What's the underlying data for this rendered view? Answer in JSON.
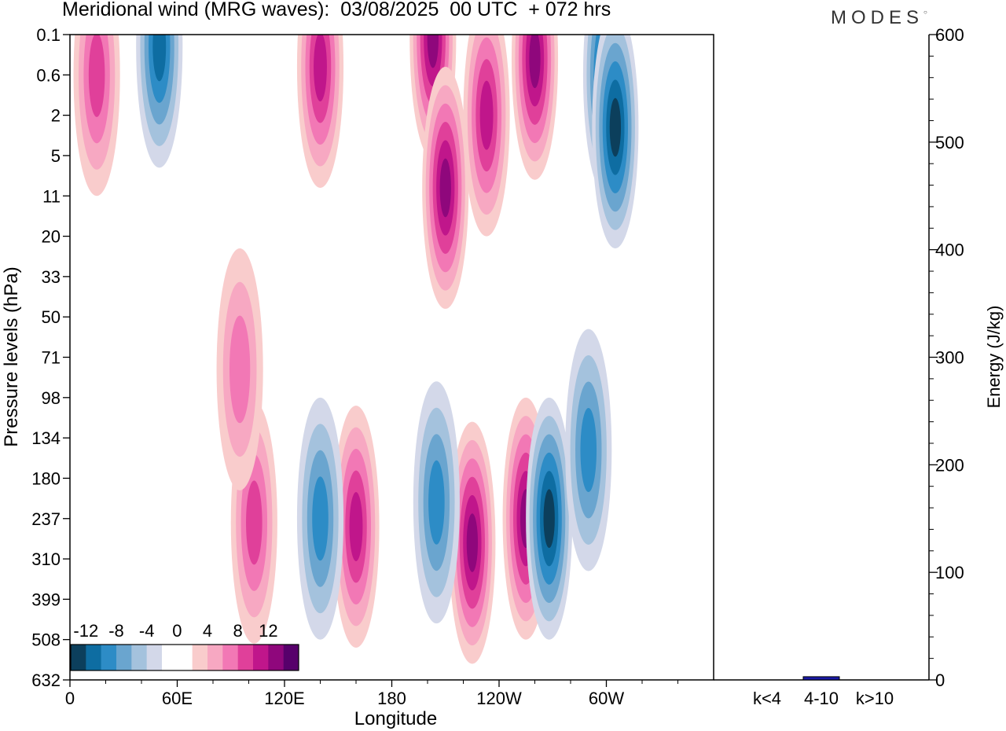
{
  "header": {
    "title": "Meridional wind (MRG waves):  03/08/2025  00 UTC  + 072 hrs",
    "logo": "MODES"
  },
  "chart_data": [
    {
      "type": "heatmap",
      "title": "Meridional wind (MRG waves)",
      "xlabel": "Longitude",
      "ylabel": "Pressure levels (hPa)",
      "x_ticks": [
        "0",
        "60E",
        "120E",
        "180",
        "120W",
        "60W"
      ],
      "x_range_deg": [
        0,
        360
      ],
      "y_ticks": [
        "0.1",
        "0.6",
        "2",
        "5",
        "11",
        "20",
        "33",
        "50",
        "71",
        "98",
        "134",
        "180",
        "237",
        "310",
        "399",
        "508",
        "632"
      ],
      "colorbar": {
        "labels": [
          "-12",
          "-8",
          "-4",
          "0",
          "4",
          "8",
          "12"
        ],
        "colors": [
          "#0c3f5c",
          "#0e6da2",
          "#2d8cc6",
          "#6aa5cf",
          "#a4c2dd",
          "#d3d8e9",
          "#ffffff",
          "#ffffff",
          "#f9cccc",
          "#f7a8c2",
          "#f278b5",
          "#e0409a",
          "#c0168b",
          "#8f077c",
          "#57006b"
        ]
      },
      "features": [
        {
          "lon": 225,
          "level_index": 12.6,
          "value": 16,
          "sign": "positive"
        },
        {
          "lon": 255,
          "level_index": 12.0,
          "value": 12,
          "sign": "positive"
        },
        {
          "lon": 268,
          "level_index": 12.0,
          "value": -10,
          "sign": "negative"
        },
        {
          "lon": 160,
          "level_index": 12.2,
          "value": 8,
          "sign": "positive"
        },
        {
          "lon": 140,
          "level_index": 12.0,
          "value": -6,
          "sign": "negative"
        },
        {
          "lon": 103,
          "level_index": 12.1,
          "value": 6,
          "sign": "positive"
        },
        {
          "lon": 205,
          "level_index": 11.6,
          "value": -6,
          "sign": "negative"
        },
        {
          "lon": 300,
          "level_index": 1.0,
          "value": -14,
          "sign": "negative"
        },
        {
          "lon": 305,
          "level_index": 2.3,
          "value": -13,
          "sign": "negative"
        },
        {
          "lon": 203,
          "level_index": 0.1,
          "value": 14,
          "sign": "positive"
        },
        {
          "lon": 233,
          "level_index": 2.0,
          "value": 9,
          "sign": "positive"
        },
        {
          "lon": 260,
          "level_index": 0.6,
          "value": 10,
          "sign": "positive"
        },
        {
          "lon": 140,
          "level_index": 0.8,
          "value": 9,
          "sign": "positive"
        },
        {
          "lon": 50,
          "level_index": 0.3,
          "value": -9,
          "sign": "negative"
        },
        {
          "lon": 15,
          "level_index": 1.0,
          "value": 6,
          "sign": "positive"
        },
        {
          "lon": 210,
          "level_index": 3.8,
          "value": 10,
          "sign": "positive"
        },
        {
          "lon": 95,
          "level_index": 8.3,
          "value": 4,
          "sign": "positive"
        },
        {
          "lon": 290,
          "level_index": 10.3,
          "value": -6,
          "sign": "negative"
        }
      ]
    },
    {
      "type": "bar",
      "categories": [
        "k<4",
        "4-10",
        "k>10"
      ],
      "values": [
        0,
        3,
        0
      ],
      "ylabel": "Energy (J/kg)",
      "ylim": [
        0,
        600
      ],
      "y_ticks": [
        "0",
        "100",
        "200",
        "300",
        "400",
        "500",
        "600"
      ]
    }
  ]
}
